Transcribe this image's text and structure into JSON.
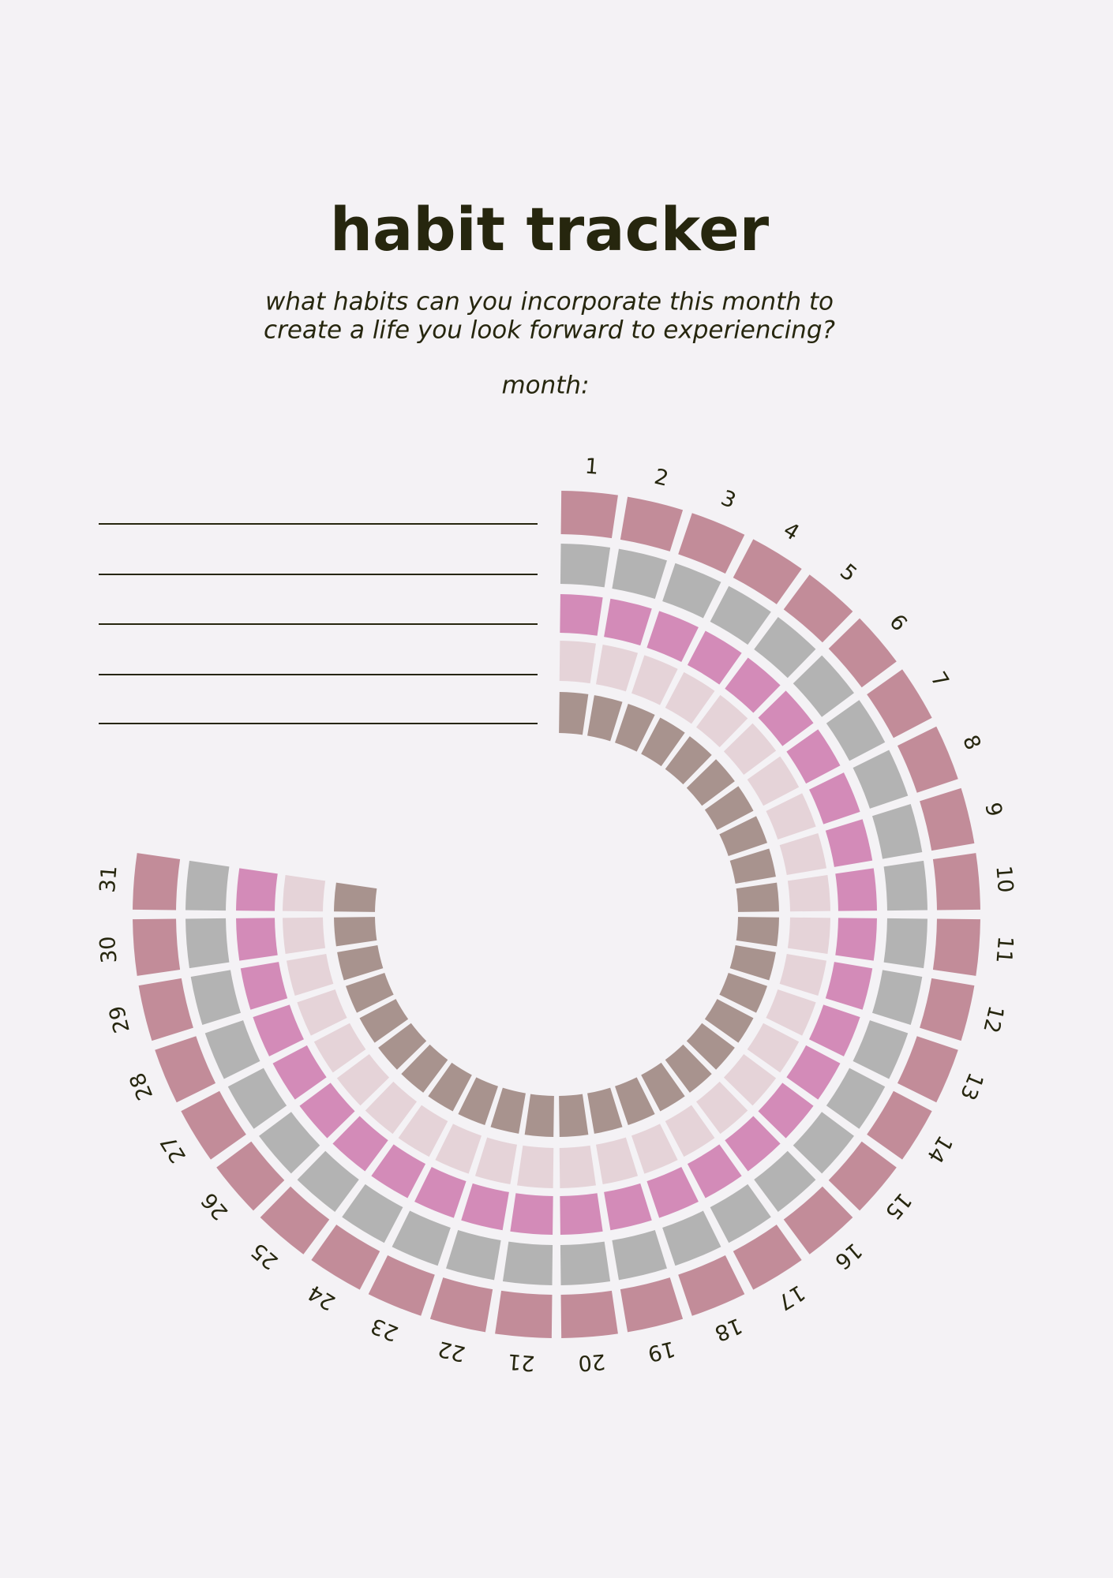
{
  "header": {
    "title": "habit tracker",
    "subtitle": [
      "what habits can you incorporate this month to",
      "create a life you look forward to experiencing?"
    ],
    "month_label": "month:"
  },
  "days": [
    1,
    2,
    3,
    4,
    5,
    6,
    7,
    8,
    9,
    10,
    11,
    12,
    13,
    14,
    15,
    16,
    17,
    18,
    19,
    20,
    21,
    22,
    23,
    24,
    25,
    26,
    27,
    28,
    29,
    30,
    31
  ]
}
